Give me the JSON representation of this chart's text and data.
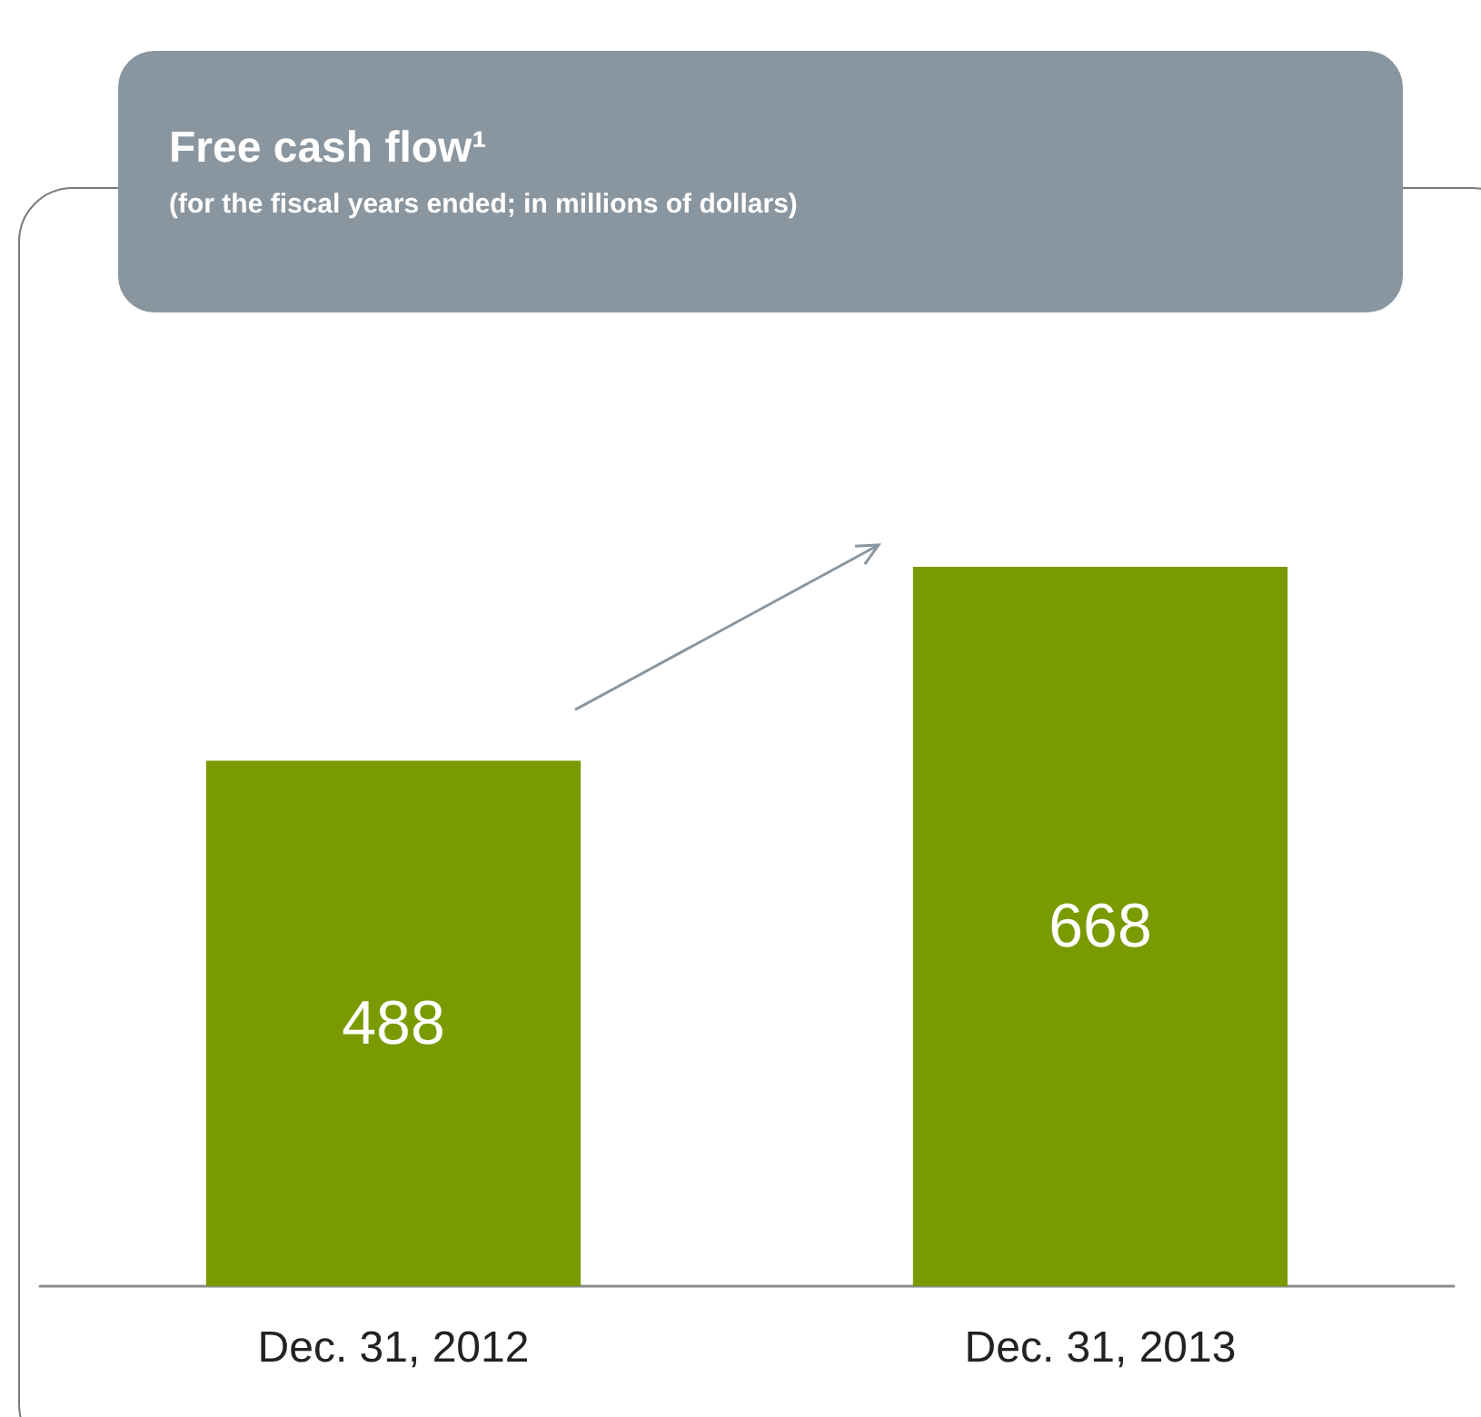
{
  "chart_data": {
    "type": "bar",
    "title": "Free cash flow¹",
    "subtitle": "(for the fiscal years ended; in millions of dollars)",
    "categories": [
      "Dec. 31, 2012",
      "Dec. 31, 2013"
    ],
    "values": [
      488,
      668
    ],
    "color": "#7a9a01",
    "data_labels": true
  }
}
